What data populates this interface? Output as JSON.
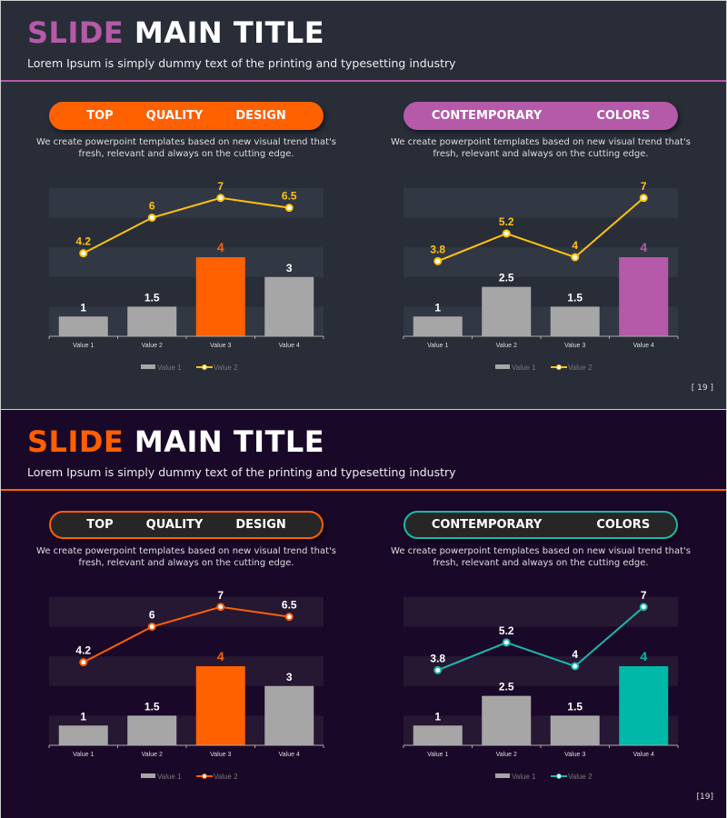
{
  "slides": [
    {
      "title_accent": "SLIDE",
      "title_rest": "MAIN TITLE",
      "subtitle": "Lorem Ipsum is simply dummy text of the printing and typesetting industry",
      "page": "[ 19 ]",
      "colors": {
        "accent": "#b55aa8",
        "bg": "#282d38"
      },
      "panels": [
        {
          "header": [
            "TOP",
            "QUALITY",
            "DESIGN"
          ],
          "desc": "We create powerpoint templates based on new visual trend that's fresh, relevant and always on the cutting edge."
        },
        {
          "header": [
            "CONTEMPORARY",
            "COLORS"
          ],
          "desc": "We create powerpoint templates based on new visual trend that's fresh, relevant and always on the cutting edge."
        }
      ]
    },
    {
      "title_accent": "SLIDE",
      "title_rest": "MAIN TITLE",
      "subtitle": "Lorem Ipsum is simply dummy text of the printing and typesetting industry",
      "page": "[19]",
      "colors": {
        "accent": "#ff5f00",
        "bg": "#1a0829"
      },
      "panels": [
        {
          "header": [
            "TOP",
            "QUALITY",
            "DESIGN"
          ],
          "desc": "We create powerpoint templates based on new visual trend that's fresh, relevant and always on the cutting edge."
        },
        {
          "header": [
            "CONTEMPORARY",
            "COLORS"
          ],
          "desc": "We create powerpoint templates based on new visual trend that's fresh, relevant and always on the cutting edge."
        }
      ]
    }
  ],
  "chart_data": [
    {
      "type": "bar+line",
      "categories": [
        "Value 1",
        "Value 2",
        "Value 3",
        "Value 4"
      ],
      "series": [
        {
          "name": "Value 1",
          "type": "bar",
          "values": [
            1,
            1.5,
            4,
            3
          ]
        },
        {
          "name": "Value 2",
          "type": "line",
          "values": [
            4.2,
            6,
            7,
            6.5
          ]
        }
      ],
      "highlight_index": 2,
      "highlight_color": "#ff6000",
      "line_color": "#ffc20e",
      "line_label_color": "#ffc20e",
      "ylim": [
        0,
        8
      ],
      "legend": "bottom"
    },
    {
      "type": "bar+line",
      "categories": [
        "Value 1",
        "Value 2",
        "Value 3",
        "Value 4"
      ],
      "series": [
        {
          "name": "Value 1",
          "type": "bar",
          "values": [
            1,
            2.5,
            1.5,
            4
          ]
        },
        {
          "name": "Value 2",
          "type": "line",
          "values": [
            3.8,
            5.2,
            4,
            7
          ]
        }
      ],
      "highlight_index": 3,
      "highlight_color": "#b55aa8",
      "line_color": "#ffc20e",
      "line_label_color": "#ffc20e",
      "ylim": [
        0,
        8
      ],
      "legend": "bottom"
    },
    {
      "type": "bar+line",
      "categories": [
        "Value 1",
        "Value 2",
        "Value 3",
        "Value 4"
      ],
      "series": [
        {
          "name": "Value 1",
          "type": "bar",
          "values": [
            1,
            1.5,
            4,
            3
          ]
        },
        {
          "name": "Value 2",
          "type": "line",
          "values": [
            4.2,
            6,
            7,
            6.5
          ]
        }
      ],
      "highlight_index": 2,
      "highlight_color": "#ff6000",
      "line_color": "#ff5f00",
      "line_label_color": "#ffffff",
      "ylim": [
        0,
        8
      ],
      "legend": "bottom"
    },
    {
      "type": "bar+line",
      "categories": [
        "Value 1",
        "Value 2",
        "Value 3",
        "Value 4"
      ],
      "series": [
        {
          "name": "Value 1",
          "type": "bar",
          "values": [
            1,
            2.5,
            1.5,
            4
          ]
        },
        {
          "name": "Value 2",
          "type": "line",
          "values": [
            3.8,
            5.2,
            4,
            7
          ]
        }
      ],
      "highlight_index": 3,
      "highlight_color": "#00b8a8",
      "line_color": "#1ab8aa",
      "line_label_color": "#ffffff",
      "ylim": [
        0,
        8
      ],
      "legend": "bottom"
    }
  ]
}
